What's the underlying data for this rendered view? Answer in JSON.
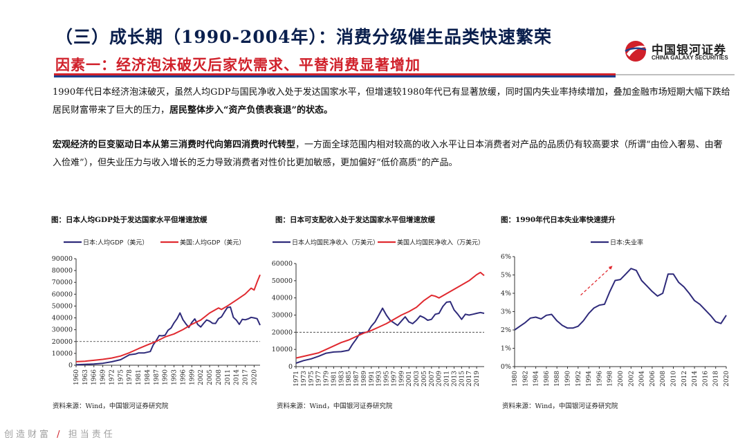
{
  "header": {
    "title": "（三）成长期（1990-2004年）：消费分级催生品类快速繁荣",
    "subtitle": "因素一：经济泡沫破灭后家饮需求、平替消费显著增加",
    "logo_cn": "中国银河证券",
    "logo_en": "CHINA GALAXY SECURITIES"
  },
  "paragraphs": {
    "p1_a": "1990年代日本经济泡沫破灭，虽然人均GDP与国民净收入处于发达国家水平，但增速较1980年代已有显著放缓，同时国内失业率持续增加，叠加金融市场短期大幅下跌给居民财富带来了巨大的压力，",
    "p1_b": "居民整体步入“资产负债表衰退”的状态。",
    "p2_a": "宏观经济的巨变驱动日本从第三消费时代向第四消费时代转型",
    "p2_b": "，一方面全球范围内相对较高的收入水平让日本消费者对产品的品质仍有较高要求（所谓“由俭入奢易、由奢入俭难”），但失业压力与收入增长的乏力导致消费者对性价比更加敏感，更加偏好“低价高质”的产品。"
  },
  "footer": {
    "left": "创造财富",
    "slash": "/",
    "right": "担当责任"
  },
  "colors": {
    "japan": "#2e2a7a",
    "us": "#e0292f",
    "title_blue": "#0a1f4d",
    "accent_red": "#d0202a"
  },
  "chart_data": [
    {
      "type": "line",
      "title": "图：日本人均GDP处于发达国家水平但增速放缓",
      "source": "资料来源：Wind，中国银河证券研究院",
      "x_start": 1960,
      "x_end": 2022,
      "tick_labels": [
        "1960",
        "1963",
        "1966",
        "1969",
        "1972",
        "1975",
        "1978",
        "1981",
        "1984",
        "1987",
        "1990",
        "1993",
        "1996",
        "1999",
        "2002",
        "2005",
        "2008",
        "2011",
        "2014",
        "2017",
        "2020"
      ],
      "ylim": [
        0,
        90000
      ],
      "yticks": [
        "0",
        "10000",
        "20000",
        "30000",
        "40000",
        "50000",
        "60000",
        "70000",
        "80000",
        "90000"
      ],
      "ref_line": 20000,
      "series": [
        {
          "name": "日本:人均GDP（美元）",
          "color": "#2e2a7a",
          "x": [
            1960,
            1963,
            1966,
            1969,
            1972,
            1975,
            1978,
            1980,
            1981,
            1983,
            1984,
            1985,
            1986,
            1987,
            1988,
            1989,
            1990,
            1991,
            1992,
            1993,
            1994,
            1995,
            1996,
            1997,
            1998,
            1999,
            2000,
            2001,
            2002,
            2003,
            2004,
            2005,
            2006,
            2007,
            2008,
            2009,
            2010,
            2011,
            2012,
            2013,
            2014,
            2015,
            2016,
            2017,
            2018,
            2019,
            2020,
            2021,
            2022
          ],
          "y": [
            480,
            700,
            1060,
            1650,
            2950,
            4650,
            8820,
            9460,
            10360,
            10420,
            10980,
            11580,
            17110,
            20750,
            25050,
            24810,
            25360,
            29550,
            31470,
            35770,
            39270,
            44200,
            38440,
            35020,
            31900,
            36030,
            39170,
            34410,
            32290,
            35390,
            38300,
            37220,
            35430,
            35280,
            39340,
            40860,
            44970,
            48760,
            49170,
            40450,
            38110,
            34520,
            38790,
            38390,
            39160,
            40420,
            39990,
            39310,
            33820
          ]
        },
        {
          "name": "美国:人均GDP（美元）",
          "color": "#e0292f",
          "x": [
            1960,
            1963,
            1966,
            1969,
            1972,
            1975,
            1978,
            1981,
            1984,
            1987,
            1990,
            1993,
            1996,
            1999,
            2002,
            2005,
            2008,
            2009,
            2011,
            2014,
            2017,
            2019,
            2020,
            2021,
            2022
          ],
          "y": [
            3000,
            3370,
            4140,
            4960,
            6100,
            7800,
            10570,
            13950,
            17120,
            20100,
            23890,
            26390,
            30070,
            34510,
            38170,
            44120,
            48380,
            47100,
            50070,
            55050,
            60110,
            65100,
            63530,
            70250,
            76400
          ]
        }
      ]
    },
    {
      "type": "line",
      "title": "图：日本可支配收入处于发达国家水平但增速放缓",
      "source": "资料来源：Wind，中国银河证券研究院",
      "x_start": 1971,
      "x_end": 2021,
      "tick_labels": [
        "1971",
        "1973",
        "1975",
        "1977",
        "1979",
        "1981",
        "1983",
        "1985",
        "1987",
        "1989",
        "1991",
        "1993",
        "1995",
        "1997",
        "1999",
        "2001",
        "2003",
        "2005",
        "2007",
        "2009",
        "2011",
        "2013",
        "2015",
        "2017",
        "2019"
      ],
      "ylim": [
        0,
        60000
      ],
      "yticks": [
        "0",
        "10000",
        "20000",
        "30000",
        "40000",
        "50000",
        "60000"
      ],
      "ref_line": 20000,
      "series": [
        {
          "name": "日本人均国民净收入（万美元）",
          "color": "#2e2a7a",
          "x": [
            1971,
            1973,
            1975,
            1977,
            1979,
            1981,
            1983,
            1985,
            1986,
            1987,
            1988,
            1989,
            1990,
            1991,
            1992,
            1993,
            1994,
            1995,
            1996,
            1997,
            1998,
            1999,
            2000,
            2001,
            2002,
            2003,
            2004,
            2005,
            2006,
            2007,
            2008,
            2009,
            2010,
            2011,
            2012,
            2013,
            2014,
            2015,
            2016,
            2017,
            2018,
            2019,
            2020,
            2021
          ],
          "y": [
            2000,
            3500,
            4500,
            6000,
            7800,
            8500,
            8700,
            9500,
            13000,
            16000,
            19500,
            19800,
            20000,
            23500,
            26000,
            30000,
            34000,
            30000,
            27000,
            25500,
            24000,
            26500,
            29000,
            26000,
            25000,
            27000,
            29500,
            28500,
            27000,
            27500,
            30500,
            31000,
            35000,
            37500,
            37800,
            33000,
            30500,
            27500,
            30500,
            30000,
            30500,
            31000,
            31500,
            31000
          ]
        },
        {
          "name": "美国人均国民净收入（万美元）",
          "color": "#e0292f",
          "x": [
            1971,
            1973,
            1975,
            1977,
            1979,
            1981,
            1983,
            1985,
            1987,
            1989,
            1991,
            1993,
            1995,
            1997,
            1999,
            2001,
            2003,
            2005,
            2007,
            2008,
            2009,
            2011,
            2013,
            2015,
            2017,
            2019,
            2020,
            2021
          ],
          "y": [
            5000,
            6000,
            7000,
            8000,
            10000,
            12000,
            14000,
            15500,
            17500,
            19500,
            21000,
            23000,
            25000,
            27500,
            30000,
            32000,
            34500,
            38500,
            41500,
            41000,
            40000,
            42500,
            45000,
            47500,
            50000,
            53500,
            54800,
            53000
          ]
        }
      ]
    },
    {
      "type": "line",
      "title": "图：1990年代日本失业率快速提升",
      "source": "资料来源：Wind，中国银河证券研究院",
      "x_start": 1980,
      "x_end": 2020,
      "tick_labels": [
        "1980",
        "1982",
        "1984",
        "1986",
        "1988",
        "1990",
        "1992",
        "1994",
        "1996",
        "1998",
        "2000",
        "2002",
        "2004",
        "2006",
        "2008",
        "2010",
        "2012",
        "2014",
        "2016",
        "2018",
        "2020"
      ],
      "ylim": [
        0,
        6
      ],
      "yticks": [
        "0%",
        "1%",
        "2%",
        "3%",
        "4%",
        "5%",
        "6%"
      ],
      "series": [
        {
          "name": "日本:失业率",
          "color": "#2e2a7a",
          "x": [
            1980,
            1981,
            1982,
            1983,
            1984,
            1985,
            1986,
            1987,
            1988,
            1989,
            1990,
            1991,
            1992,
            1993,
            1994,
            1995,
            1996,
            1997,
            1998,
            1999,
            2000,
            2001,
            2002,
            2003,
            2004,
            2005,
            2006,
            2007,
            2008,
            2009,
            2010,
            2011,
            2012,
            2013,
            2014,
            2015,
            2016,
            2017,
            2018,
            2019,
            2020
          ],
          "y": [
            2.0,
            2.2,
            2.4,
            2.65,
            2.7,
            2.6,
            2.8,
            2.85,
            2.5,
            2.25,
            2.1,
            2.1,
            2.2,
            2.5,
            2.9,
            3.2,
            3.35,
            3.4,
            4.1,
            4.7,
            4.75,
            5.05,
            5.35,
            5.25,
            4.7,
            4.4,
            4.1,
            3.85,
            4.0,
            5.05,
            5.05,
            4.6,
            4.35,
            4.0,
            3.6,
            3.4,
            3.1,
            2.8,
            2.45,
            2.35,
            2.8
          ]
        }
      ]
    }
  ]
}
